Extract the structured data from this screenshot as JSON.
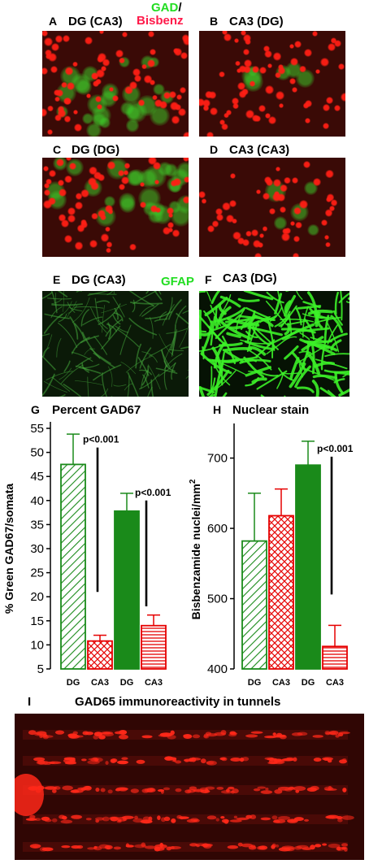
{
  "stain_title": {
    "gad": "GAD",
    "slash": "/",
    "bisbenz": "Bisbenz",
    "gfap": "GFAP"
  },
  "panels": {
    "A": {
      "letter": "A",
      "title": "DG (CA3)"
    },
    "B": {
      "letter": "B",
      "title": "CA3 (DG)"
    },
    "C": {
      "letter": "C",
      "title": "DG (DG)"
    },
    "D": {
      "letter": "D",
      "title": "CA3 (CA3)"
    },
    "E": {
      "letter": "E",
      "title": "DG (CA3)"
    },
    "F": {
      "letter": "F",
      "title": "CA3 (DG)"
    },
    "G": {
      "letter": "G",
      "title": "Percent GAD67"
    },
    "H": {
      "letter": "H",
      "title": "Nuclear stain"
    },
    "I": {
      "letter": "I",
      "title": "GAD65 immunoreactivity in tunnels"
    }
  },
  "colors": {
    "gad_green": "#22dd22",
    "bisbenz_red": "#ff1a4a",
    "bar_green": "#1a8a1a",
    "bar_red": "#e60000"
  },
  "chart_data": [
    {
      "type": "bar",
      "panel": "G",
      "title": "Percent GAD67",
      "ylabel": "% Green GAD67/somata",
      "ylim": [
        5,
        55
      ],
      "yticks": [
        5,
        10,
        15,
        20,
        25,
        30,
        35,
        40,
        45,
        50,
        55
      ],
      "categories": [
        {
          "top": "DG",
          "bottom": "(CA3)"
        },
        {
          "top": "CA3",
          "bottom": "(DG)"
        },
        {
          "top": "DG",
          "bottom": "(DG)"
        },
        {
          "top": "CA3",
          "bottom": "(CA3)"
        }
      ],
      "values": [
        47.5,
        10.8,
        37.8,
        14.0
      ],
      "errors": [
        6.3,
        1.2,
        3.7,
        2.2
      ],
      "fills": [
        "hatch-green",
        "crosshatch-red",
        "solid-green",
        "stripe-red"
      ],
      "annotations": [
        "p<0.001",
        "p<0.001"
      ]
    },
    {
      "type": "bar",
      "panel": "H",
      "title": "Nuclear stain",
      "ylabel": "Bisbenzamide nuclei/mm",
      "ylabel_sup": "2",
      "ylim": [
        400,
        740
      ],
      "yticks": [
        400,
        500,
        600,
        700
      ],
      "categories": [
        {
          "top": "DG",
          "bottom": "(CA3)"
        },
        {
          "top": "CA3",
          "bottom": "(DG)"
        },
        {
          "top": "DG",
          "bottom": "(DG)"
        },
        {
          "top": "CA3",
          "bottom": "(CA3)"
        }
      ],
      "values": [
        582,
        618,
        690,
        432
      ],
      "errors": [
        68,
        38,
        34,
        30
      ],
      "fills": [
        "hatch-green",
        "crosshatch-red",
        "solid-green",
        "stripe-red"
      ],
      "annotations": [
        "p<0.001"
      ]
    }
  ]
}
